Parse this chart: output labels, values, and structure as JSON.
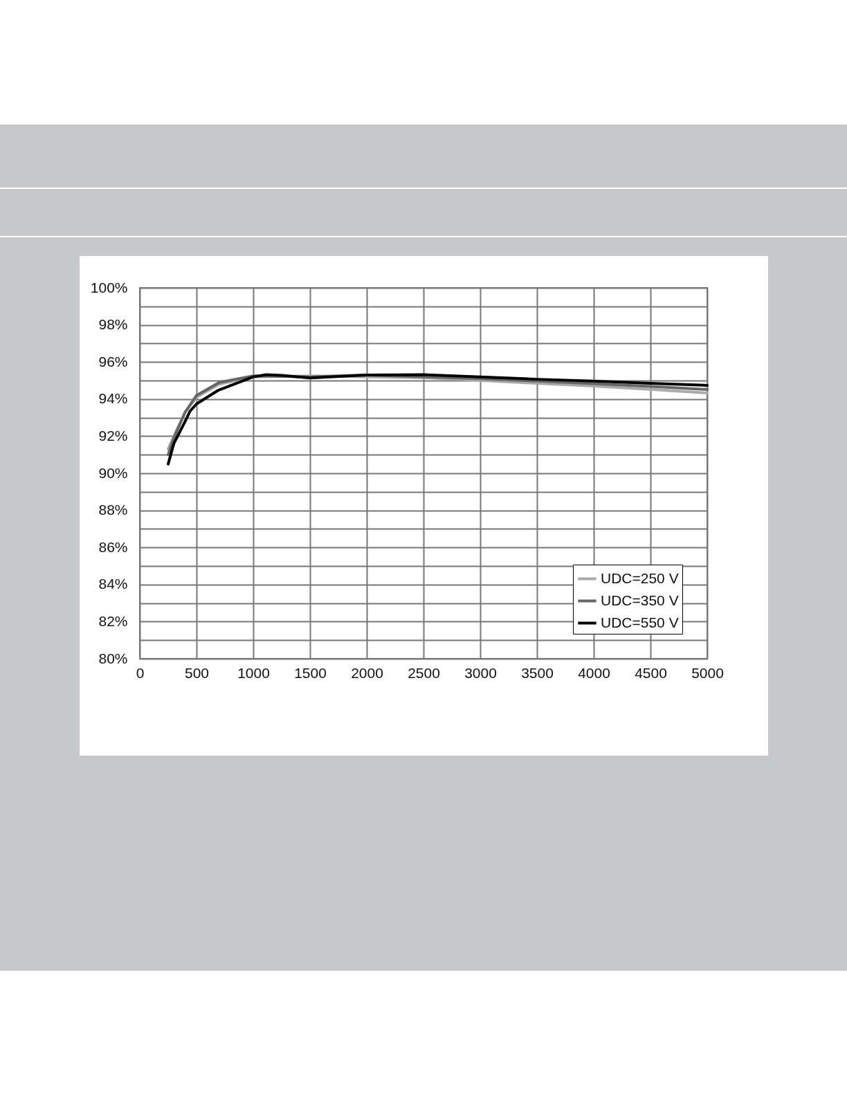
{
  "chart_data": {
    "type": "line",
    "xlim": [
      0,
      5000
    ],
    "xticks": [
      0,
      500,
      1000,
      1500,
      2000,
      2500,
      3000,
      3500,
      4000,
      4500,
      5000
    ],
    "ylim": [
      80,
      100
    ],
    "yticks": [
      {
        "value": 80,
        "label": "80%"
      },
      {
        "value": 81,
        "label": null
      },
      {
        "value": 82,
        "label": "82%"
      },
      {
        "value": 83,
        "label": null
      },
      {
        "value": 84,
        "label": "84%"
      },
      {
        "value": 85,
        "label": null
      },
      {
        "value": 86,
        "label": "86%"
      },
      {
        "value": 87,
        "label": null
      },
      {
        "value": 88,
        "label": "88%"
      },
      {
        "value": 89,
        "label": null
      },
      {
        "value": 90,
        "label": "90%"
      },
      {
        "value": 91,
        "label": null
      },
      {
        "value": 92,
        "label": "92%"
      },
      {
        "value": 93,
        "label": null
      },
      {
        "value": 94,
        "label": "94%"
      },
      {
        "value": 95,
        "label": null
      },
      {
        "value": 96,
        "label": "96%"
      },
      {
        "value": 97,
        "label": null
      },
      {
        "value": 98,
        "label": "98%"
      },
      {
        "value": 99,
        "label": null
      },
      {
        "value": 100,
        "label": "100%"
      }
    ],
    "grid": true,
    "legend": "bottom right",
    "marker": "none",
    "line_style": "solid",
    "series": [
      {
        "name": "UDC=250 V",
        "color": "#aaaaaa",
        "x": [
          250,
          300,
          400,
          500,
          700,
          1000,
          1500,
          2000,
          2500,
          3000,
          3500,
          4000,
          4500,
          5000
        ],
        "values": [
          91.3,
          92.0,
          93.3,
          94.1,
          94.8,
          95.2,
          95.25,
          95.2,
          95.16,
          95.01,
          94.85,
          94.7,
          94.52,
          94.33
        ]
      },
      {
        "name": "UDC=350 V",
        "color": "#666666",
        "x": [
          250,
          300,
          400,
          500,
          700,
          1000,
          1500,
          2000,
          2500,
          3000,
          3500,
          4000,
          4500,
          5000
        ],
        "values": [
          91.0,
          91.9,
          93.3,
          94.2,
          94.9,
          95.25,
          95.2,
          95.3,
          95.2,
          95.1,
          94.97,
          94.83,
          94.68,
          94.52
        ]
      },
      {
        "name": "UDC=550 V",
        "color": "#000000",
        "x": [
          250,
          300,
          400,
          443,
          500,
          687,
          1000,
          1114,
          1250,
          1500,
          2000,
          2500,
          3000,
          3500,
          4000,
          4500,
          5000
        ],
        "values": [
          90.5,
          91.6,
          92.8,
          93.35,
          93.74,
          94.46,
          95.2,
          95.32,
          95.28,
          95.14,
          95.3,
          95.32,
          95.2,
          95.07,
          94.97,
          94.85,
          94.74
        ]
      }
    ]
  }
}
